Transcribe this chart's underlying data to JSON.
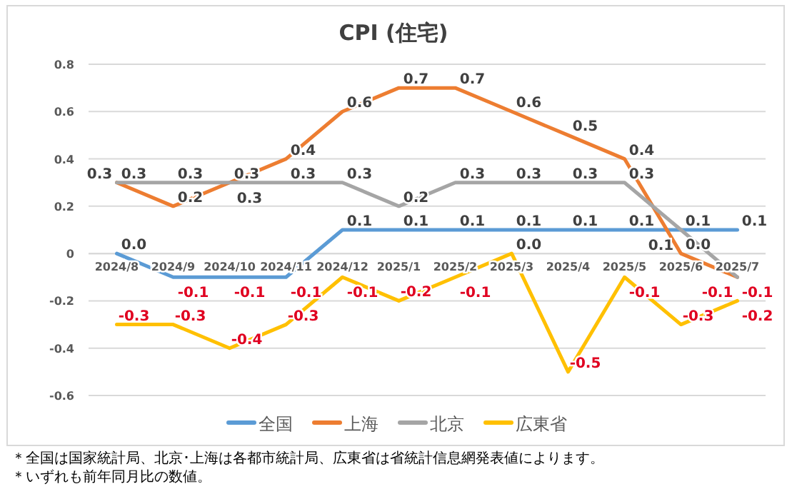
{
  "chart_data": {
    "type": "line",
    "title": "CPI (住宅)",
    "categories": [
      "2024/8",
      "2024/9",
      "2024/10",
      "2024/11",
      "2024/12",
      "2025/1",
      "2025/2",
      "2025/3",
      "2025/4",
      "2025/5",
      "2025/6",
      "2025/7"
    ],
    "series": [
      {
        "name": "全国",
        "color": "#5b9bd5",
        "values": [
          0.0,
          -0.1,
          -0.1,
          -0.1,
          0.1,
          0.1,
          0.1,
          0.1,
          0.1,
          0.1,
          0.1,
          0.1
        ],
        "value_labels": [
          "0.0",
          "-0.1",
          "-0.1",
          "-0.1",
          "0.1",
          "0.1",
          "0.1",
          "0.1",
          "0.1",
          "0.1",
          "0.1",
          "0.1"
        ]
      },
      {
        "name": "上海",
        "color": "#ed7d31",
        "values": [
          0.3,
          0.2,
          0.3,
          0.4,
          0.6,
          0.7,
          0.7,
          0.6,
          0.5,
          0.4,
          0.0,
          -0.1
        ],
        "value_labels": [
          "0.3",
          "0.2",
          "0.3",
          "0.4",
          "0.6",
          "0.7",
          "0.7",
          "0.6",
          "0.5",
          "0.4",
          "0.0",
          "-0.1"
        ]
      },
      {
        "name": "北京",
        "color": "#a5a5a5",
        "values": [
          0.3,
          0.3,
          0.3,
          0.3,
          0.3,
          0.2,
          0.3,
          0.3,
          0.3,
          0.3,
          0.1,
          -0.1
        ],
        "value_labels": [
          "0.3",
          "0.3",
          "0.3",
          "0.3",
          "0.3",
          "0.2",
          "0.3",
          "0.3",
          "0.3",
          "0.3",
          "0.1",
          "-0.1"
        ]
      },
      {
        "name": "広東省",
        "color": "#ffc000",
        "values": [
          -0.3,
          -0.3,
          -0.4,
          -0.3,
          -0.1,
          -0.2,
          -0.1,
          0.0,
          -0.5,
          -0.1,
          -0.3,
          -0.2
        ],
        "value_labels": [
          "-0.3",
          "-0.3",
          "-0.4",
          "-0.3",
          "-0.1",
          "-0.2",
          "-0.1",
          "0.0",
          "-0.5",
          "-0.1",
          "-0.3",
          "-0.2"
        ]
      }
    ],
    "ylim": [
      -0.6,
      0.8
    ],
    "yticks": [
      {
        "value": -0.6,
        "label": "-0.6"
      },
      {
        "value": -0.4,
        "label": "-0.4"
      },
      {
        "value": -0.2,
        "label": "-0.2"
      },
      {
        "value": 0,
        "label": "0"
      },
      {
        "value": 0.2,
        "label": "0.2"
      },
      {
        "value": 0.4,
        "label": "0.4"
      },
      {
        "value": 0.6,
        "label": "0.6"
      },
      {
        "value": 0.8,
        "label": "0.8"
      }
    ],
    "grid": "y",
    "legend": "bottom",
    "annotations": [
      "＊全国は国家統計局、北京･上海は各都市統計局、広東省は省統計信息網発表値によります。",
      "＊いずれも前年同月比の数値。"
    ]
  }
}
